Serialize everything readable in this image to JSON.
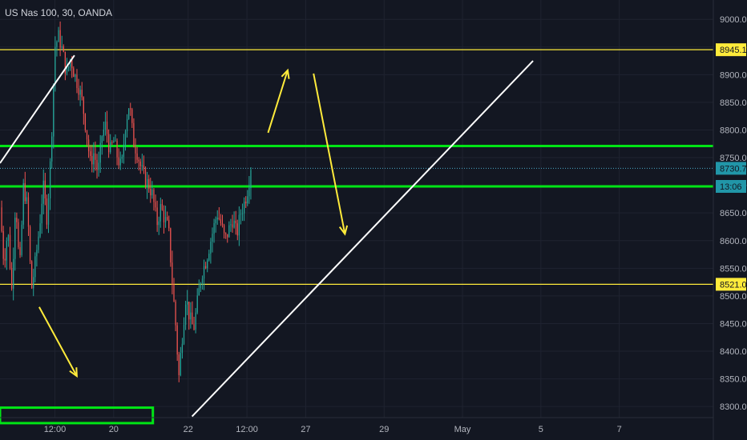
{
  "title": "US Nas 100, 30, OANDA",
  "chart_data": {
    "type": "candlestick",
    "symbol": "US Nas 100",
    "timeframe": "30",
    "source": "OANDA",
    "ylim": [
      8280,
      9035
    ],
    "y_ticks": [
      8300,
      8350,
      8400,
      8450,
      8500,
      8550,
      8600,
      8650,
      8700,
      8750,
      8800,
      8850,
      8900,
      8950,
      9000
    ],
    "x_ticks": [
      {
        "label": "12:00",
        "t": 0.5
      },
      {
        "label": "20",
        "t": 1.25
      },
      {
        "label": "22",
        "t": 2.2
      },
      {
        "label": "12:00",
        "t": 2.95
      },
      {
        "label": "27",
        "t": 3.7
      },
      {
        "label": "29",
        "t": 4.7
      },
      {
        "label": "May",
        "t": 5.7
      },
      {
        "label": "5",
        "t": 6.7
      },
      {
        "label": "7",
        "t": 7.7
      }
    ],
    "x_range": [
      -0.2,
      8.9
    ],
    "levels": [
      {
        "value": 8945.1,
        "label": "8945.1",
        "color": "#ffeb3b",
        "style": "thin"
      },
      {
        "value": 8771,
        "label": "",
        "color": "#00e515",
        "style": "thick"
      },
      {
        "value": 8730.7,
        "label": "8730.7",
        "color": "#4aa8c7",
        "style": "dotted"
      },
      {
        "value": 8698,
        "label": "",
        "color": "#00e515",
        "style": "thick"
      },
      {
        "value": 8521.0,
        "label": "8521.0",
        "color": "#ffeb3b",
        "style": "thin"
      }
    ],
    "countdown": {
      "value": 8698,
      "label": "13:06"
    },
    "path_points": [
      [
        -0.2,
        8660
      ],
      [
        -0.15,
        8560
      ],
      [
        -0.1,
        8620
      ],
      [
        -0.05,
        8510
      ],
      [
        0.0,
        8680
      ],
      [
        0.05,
        8540
      ],
      [
        0.1,
        8700
      ],
      [
        0.15,
        8660
      ],
      [
        0.2,
        8510
      ],
      [
        0.25,
        8560
      ],
      [
        0.3,
        8620
      ],
      [
        0.35,
        8700
      ],
      [
        0.4,
        8640
      ],
      [
        0.45,
        8760
      ],
      [
        0.5,
        8950
      ],
      [
        0.55,
        8970
      ],
      [
        0.6,
        8940
      ],
      [
        0.65,
        8900
      ],
      [
        0.7,
        8930
      ],
      [
        0.75,
        8900
      ],
      [
        0.8,
        8880
      ],
      [
        0.85,
        8850
      ],
      [
        0.9,
        8800
      ],
      [
        0.95,
        8740
      ],
      [
        1.0,
        8760
      ],
      [
        1.05,
        8720
      ],
      [
        1.1,
        8790
      ],
      [
        1.15,
        8810
      ],
      [
        1.2,
        8760
      ],
      [
        1.25,
        8780
      ],
      [
        1.3,
        8750
      ],
      [
        1.35,
        8730
      ],
      [
        1.4,
        8810
      ],
      [
        1.45,
        8850
      ],
      [
        1.5,
        8780
      ],
      [
        1.55,
        8760
      ],
      [
        1.6,
        8730
      ],
      [
        1.65,
        8710
      ],
      [
        1.7,
        8700
      ],
      [
        1.75,
        8680
      ],
      [
        1.8,
        8630
      ],
      [
        1.85,
        8660
      ],
      [
        1.9,
        8640
      ],
      [
        1.95,
        8620
      ],
      [
        2.0,
        8520
      ],
      [
        2.05,
        8430
      ],
      [
        2.08,
        8350
      ],
      [
        2.12,
        8420
      ],
      [
        2.17,
        8500
      ],
      [
        2.22,
        8460
      ],
      [
        2.27,
        8440
      ],
      [
        2.32,
        8490
      ],
      [
        2.37,
        8540
      ],
      [
        2.42,
        8560
      ],
      [
        2.47,
        8590
      ],
      [
        2.52,
        8620
      ],
      [
        2.57,
        8650
      ],
      [
        2.62,
        8630
      ],
      [
        2.67,
        8600
      ],
      [
        2.72,
        8620
      ],
      [
        2.77,
        8640
      ],
      [
        2.82,
        8610
      ],
      [
        2.87,
        8650
      ],
      [
        2.92,
        8670
      ],
      [
        2.97,
        8700
      ],
      [
        3.0,
        8735
      ]
    ],
    "trend_lines": [
      {
        "from": [
          -0.2,
          8740
        ],
        "to": [
          0.75,
          8935
        ],
        "color": "#ffffff"
      },
      {
        "from": [
          2.25,
          8282
        ],
        "to": [
          6.6,
          8925
        ],
        "color": "#ffffff"
      }
    ],
    "arrows": [
      {
        "from": [
          0.3,
          8480
        ],
        "to": [
          0.78,
          8355
        ],
        "color": "#ffeb3b"
      },
      {
        "from": [
          3.22,
          8795
        ],
        "to": [
          3.47,
          8908
        ],
        "color": "#ffeb3b"
      },
      {
        "from": [
          3.8,
          8902
        ],
        "to": [
          4.2,
          8612
        ],
        "color": "#ffeb3b"
      }
    ],
    "boxes": [
      {
        "x0": -0.2,
        "x1": 1.75,
        "y0": 8270,
        "y1": 8298,
        "color": "#00e515"
      }
    ]
  }
}
